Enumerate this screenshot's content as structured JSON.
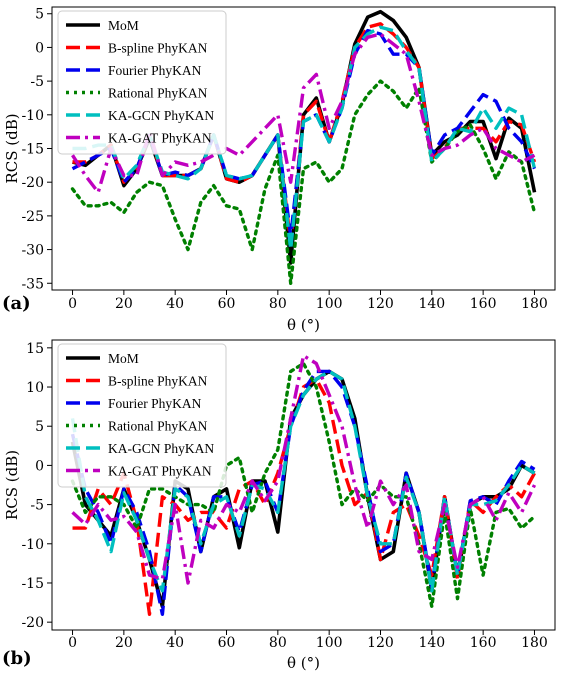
{
  "colors": {
    "MoM": "#000000",
    "B-spline PhyKAN": "#ff0000",
    "Fourier PhyKAN": "#0000ee",
    "Rational PhyKAN": "#008000",
    "KA-GCN PhyKAN": "#00bfbf",
    "KA-GAT PhyKAN": "#bf00bf"
  },
  "chart_data": [
    {
      "type": "line",
      "panel_label": "(a)",
      "xlabel": "θ (°)",
      "ylabel": "RCS (dB)",
      "xlim": [
        -8,
        188
      ],
      "ylim": [
        -36,
        6
      ],
      "xticks": [
        0,
        20,
        40,
        60,
        80,
        100,
        120,
        140,
        160,
        180
      ],
      "yticks": [
        5,
        0,
        -5,
        -10,
        -15,
        -20,
        -25,
        -30,
        -35
      ],
      "legend_position": "top-left",
      "grid": false,
      "x": [
        0,
        5,
        10,
        15,
        20,
        25,
        30,
        35,
        40,
        45,
        50,
        55,
        60,
        65,
        70,
        75,
        80,
        85,
        90,
        95,
        100,
        105,
        110,
        115,
        120,
        125,
        130,
        135,
        140,
        145,
        150,
        155,
        160,
        165,
        170,
        175,
        180
      ],
      "series": [
        {
          "name": "MoM",
          "style": "solid",
          "values": [
            -17,
            -17.5,
            -16,
            -14.5,
            -20.5,
            -18,
            -13.5,
            -19,
            -19,
            -19,
            -18,
            -13,
            -19.5,
            -20,
            -19,
            -16,
            -13,
            -32,
            -10,
            -7.5,
            -14,
            -8.5,
            0.5,
            4.5,
            5.3,
            4,
            1.5,
            -3,
            -16,
            -14,
            -13,
            -11,
            -11,
            -16.5,
            -10.5,
            -12,
            -21.5
          ]
        },
        {
          "name": "B-spline PhyKAN",
          "style": "dashed",
          "values": [
            -17,
            -17,
            -16,
            -14.5,
            -20,
            -18,
            -13,
            -19,
            -19,
            -19,
            -18,
            -13,
            -19.5,
            -20,
            -19,
            -16,
            -13,
            -29,
            -10,
            -8,
            -14,
            -8,
            0,
            3,
            3.5,
            2,
            0,
            -3,
            -16.5,
            -15,
            -12,
            -12,
            -12,
            -14,
            -11,
            -11.5,
            -17
          ]
        },
        {
          "name": "Fourier PhyKAN",
          "style": "dashed",
          "values": [
            -18,
            -17,
            -16,
            -15,
            -20,
            -18,
            -13,
            -19,
            -18.5,
            -19,
            -18,
            -13,
            -19,
            -19.5,
            -19,
            -16,
            -13,
            -28,
            -11,
            -10,
            -14,
            -9,
            -1,
            2.5,
            2,
            -1,
            -1,
            -3,
            -16,
            -13,
            -12,
            -9.5,
            -7,
            -8,
            -12,
            -14,
            -18
          ]
        },
        {
          "name": "Rational PhyKAN",
          "style": "dotted",
          "values": [
            -21,
            -23.5,
            -23.5,
            -23,
            -24.5,
            -21.5,
            -20,
            -20.5,
            -25.5,
            -30,
            -23,
            -20.5,
            -23.5,
            -24,
            -30,
            -21,
            -16,
            -35,
            -18,
            -17,
            -20,
            -18,
            -10,
            -7,
            -5,
            -6.5,
            -9,
            -6,
            -17,
            -15,
            -12.5,
            -11.5,
            -15,
            -19.5,
            -15.5,
            -17,
            -24.5
          ]
        },
        {
          "name": "KA-GCN PhyKAN",
          "style": "dashed",
          "values": [
            -15,
            -15,
            -14.5,
            -14.5,
            -19.5,
            -17.5,
            -13,
            -18.5,
            -19,
            -19.5,
            -18,
            -13,
            -19,
            -19.5,
            -19,
            -16,
            -13,
            -30,
            -11,
            -10,
            -14,
            -9,
            0,
            2,
            3,
            2.5,
            -0.5,
            -3,
            -17,
            -15,
            -12,
            -12.5,
            -9,
            -12,
            -9,
            -10,
            -18
          ]
        },
        {
          "name": "KA-GAT PhyKAN",
          "style": "dashdot",
          "values": [
            -16,
            -19,
            -21.5,
            -15,
            -19,
            -19,
            -12.5,
            -19,
            -17,
            -17.5,
            -17,
            -16,
            -15,
            -16,
            -14,
            -12,
            -10,
            -20,
            -6,
            -4,
            -12,
            -8,
            -1,
            1.5,
            2,
            0.5,
            -1,
            -8,
            -16,
            -15,
            -14.5,
            -13,
            -12,
            -15,
            -16,
            -17,
            -16
          ]
        }
      ]
    },
    {
      "type": "line",
      "panel_label": "(b)",
      "xlabel": "θ (°)",
      "ylabel": "RCS (dB)",
      "xlim": [
        -8,
        188
      ],
      "ylim": [
        -21,
        16
      ],
      "xticks": [
        0,
        20,
        40,
        60,
        80,
        100,
        120,
        140,
        160,
        180
      ],
      "yticks": [
        15,
        10,
        5,
        0,
        -5,
        -10,
        -15,
        -20
      ],
      "legend_position": "top-left",
      "grid": false,
      "x": [
        0,
        5,
        10,
        15,
        20,
        25,
        30,
        35,
        40,
        45,
        50,
        55,
        60,
        65,
        70,
        75,
        80,
        85,
        90,
        95,
        100,
        105,
        110,
        115,
        120,
        125,
        130,
        135,
        140,
        145,
        150,
        155,
        160,
        165,
        170,
        175,
        180
      ],
      "series": [
        {
          "name": "MoM",
          "style": "solid",
          "values": [
            3,
            -5,
            -7,
            -9,
            -3,
            -7,
            -12,
            -18,
            -2,
            -3,
            -11,
            -4,
            -3,
            -10.5,
            -2,
            -2,
            -8.5,
            6,
            9,
            11,
            12,
            11,
            6,
            -4,
            -12,
            -11,
            -1,
            -6,
            -16,
            -4,
            -14,
            -5,
            -4,
            -4,
            -3,
            0,
            -1
          ]
        },
        {
          "name": "B-spline PhyKAN",
          "style": "dashed",
          "values": [
            -8,
            -8,
            -3,
            -5,
            -1,
            -7,
            -19,
            -4,
            -5,
            -7,
            -6,
            -6,
            -8,
            -3,
            -2,
            -5,
            -1,
            5,
            10,
            11,
            8,
            0,
            -5,
            -3.5,
            -12,
            -6,
            -5,
            -9,
            -14,
            -4,
            -14.5,
            -4.5,
            -6,
            -4,
            -2.5,
            -4,
            -1
          ]
        },
        {
          "name": "Fourier PhyKAN",
          "style": "dashed",
          "values": [
            4,
            -3,
            -6,
            -10,
            -3,
            -6,
            -11,
            -19,
            -2.5,
            -4,
            -11,
            -4,
            -4,
            -8.5,
            -2.5,
            -2,
            -6,
            5,
            9.5,
            12,
            12,
            10,
            5,
            -3,
            -11,
            -10,
            -1,
            -6,
            -15.5,
            -4,
            -14,
            -4.5,
            -4,
            -5,
            -2,
            0.5,
            -0.5
          ]
        },
        {
          "name": "Rational PhyKAN",
          "style": "dotted",
          "values": [
            -2,
            -6,
            -4,
            -4,
            -5,
            -8,
            -3,
            -3,
            -4,
            -5,
            -5,
            -6,
            0,
            1,
            -6,
            -1,
            2,
            12,
            13,
            10,
            3,
            -5,
            -3,
            -4.5,
            -2.5,
            -4,
            -4,
            -10,
            -18,
            -6,
            -17,
            -5.5,
            -14,
            -6,
            -5.5,
            -8,
            -6.5
          ]
        },
        {
          "name": "KA-GCN PhyKAN",
          "style": "dashed",
          "values": [
            6,
            -4,
            -7,
            -11,
            -3.5,
            -7,
            -12,
            -16,
            -3,
            -4,
            -10,
            -5,
            -4,
            -9,
            -2.5,
            -3,
            -6,
            5,
            9,
            11,
            12,
            11,
            5,
            -4,
            -10,
            -10,
            -1.5,
            -6,
            -16,
            -4,
            -14,
            -5,
            -5,
            -4.5,
            -2.5,
            0,
            -1
          ]
        },
        {
          "name": "KA-GAT PhyKAN",
          "style": "dashdot",
          "values": [
            -6,
            -7.5,
            -5,
            -7,
            -6.5,
            -8.5,
            -14,
            -14.5,
            -5,
            -15,
            -7,
            -8,
            -5,
            -6,
            -2,
            -4.5,
            -2,
            6,
            14,
            13,
            9,
            5,
            -2.5,
            -8,
            -2,
            -5,
            -2.5,
            -11,
            -12,
            -5,
            -13,
            -5,
            -4,
            -7,
            -3.5,
            -6,
            -2.5
          ]
        }
      ]
    }
  ]
}
